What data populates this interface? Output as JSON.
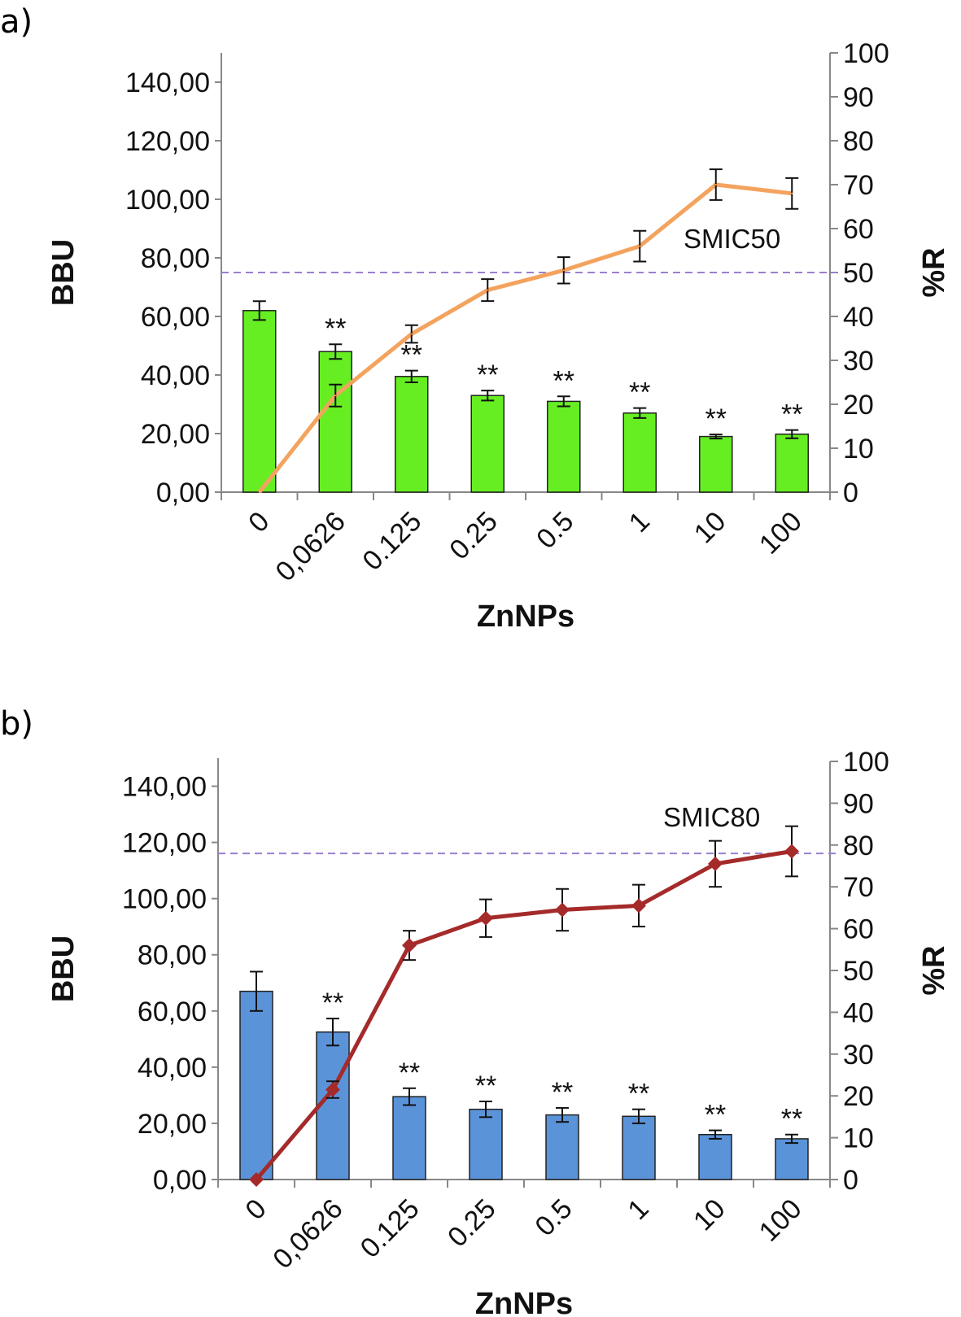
{
  "chart_data": [
    {
      "panel_label": "a)",
      "type": "bar+line",
      "xlabel": "ZnNPs",
      "ylabel_left": "BBU",
      "ylabel_right": "%R",
      "categories": [
        "0",
        "0,0626",
        "0.125",
        "0.25",
        "0.5",
        "1",
        "10",
        "100"
      ],
      "left_axis": {
        "ylim": [
          0,
          150
        ],
        "ticks": [
          0,
          20,
          40,
          60,
          80,
          100,
          120,
          140
        ],
        "tick_labels": [
          "0,00",
          "20,00",
          "40,00",
          "60,00",
          "80,00",
          "100,00",
          "120,00",
          "140,00"
        ]
      },
      "right_axis": {
        "ylim": [
          0,
          100
        ],
        "ticks": [
          0,
          10,
          20,
          30,
          40,
          50,
          60,
          70,
          80,
          90,
          100
        ],
        "tick_labels": [
          "0",
          "10",
          "20",
          "30",
          "40",
          "50",
          "60",
          "70",
          "80",
          "90",
          "100"
        ]
      },
      "bars": {
        "name": "BBU",
        "color": "#66ee22",
        "values": [
          62,
          48,
          39.5,
          33,
          31,
          27,
          19,
          19.8
        ],
        "errors": [
          3.2,
          2.5,
          2,
          1.7,
          1.7,
          1.7,
          0.7,
          1.4
        ],
        "significance": [
          "",
          "**",
          "**",
          "**",
          "**",
          "**",
          "**",
          "**"
        ]
      },
      "line": {
        "name": "%R",
        "color": "#f4a35e",
        "marker": "none",
        "values": [
          0,
          22,
          36,
          46,
          50.5,
          56,
          70,
          68
        ],
        "errors": [
          0,
          2.5,
          2,
          2.5,
          3,
          3.5,
          3.5,
          3.5
        ]
      },
      "threshold": {
        "label": "SMIC50",
        "value": 50,
        "color": "#9b7fd0"
      }
    },
    {
      "panel_label": "b)",
      "type": "bar+line",
      "xlabel": "ZnNPs",
      "ylabel_left": "BBU",
      "ylabel_right": "%R",
      "categories": [
        "0",
        "0,0626",
        "0.125",
        "0.25",
        "0.5",
        "1",
        "10",
        "100"
      ],
      "left_axis": {
        "ylim": [
          0,
          150
        ],
        "ticks": [
          0,
          20,
          40,
          60,
          80,
          100,
          120,
          140
        ],
        "tick_labels": [
          "0,00",
          "20,00",
          "40,00",
          "60,00",
          "80,00",
          "100,00",
          "120,00",
          "140,00"
        ]
      },
      "right_axis": {
        "ylim": [
          0,
          100
        ],
        "ticks": [
          0,
          10,
          20,
          30,
          40,
          50,
          60,
          70,
          80,
          90,
          100
        ],
        "tick_labels": [
          "0",
          "10",
          "20",
          "30",
          "40",
          "50",
          "60",
          "70",
          "80",
          "90",
          "100"
        ]
      },
      "bars": {
        "name": "BBU",
        "color": "#5b93d9",
        "values": [
          67,
          52.5,
          29.5,
          25,
          23,
          22.5,
          16,
          14.5
        ],
        "errors": [
          7,
          4.8,
          3,
          2.8,
          2.5,
          2.5,
          1.5,
          1.5
        ],
        "significance": [
          "",
          "**",
          "**",
          "**",
          "**",
          "**",
          "**",
          "**"
        ]
      },
      "line": {
        "name": "%R",
        "color": "#a52a2a",
        "marker": "diamond",
        "values": [
          0,
          21.5,
          56,
          62.5,
          64.5,
          65.5,
          75.5,
          78.5
        ],
        "errors": [
          0,
          2,
          3.5,
          4.5,
          5,
          5,
          5.5,
          6
        ]
      },
      "threshold": {
        "label": "SMIC80",
        "value": 78,
        "color": "#9b7fd0"
      }
    }
  ]
}
